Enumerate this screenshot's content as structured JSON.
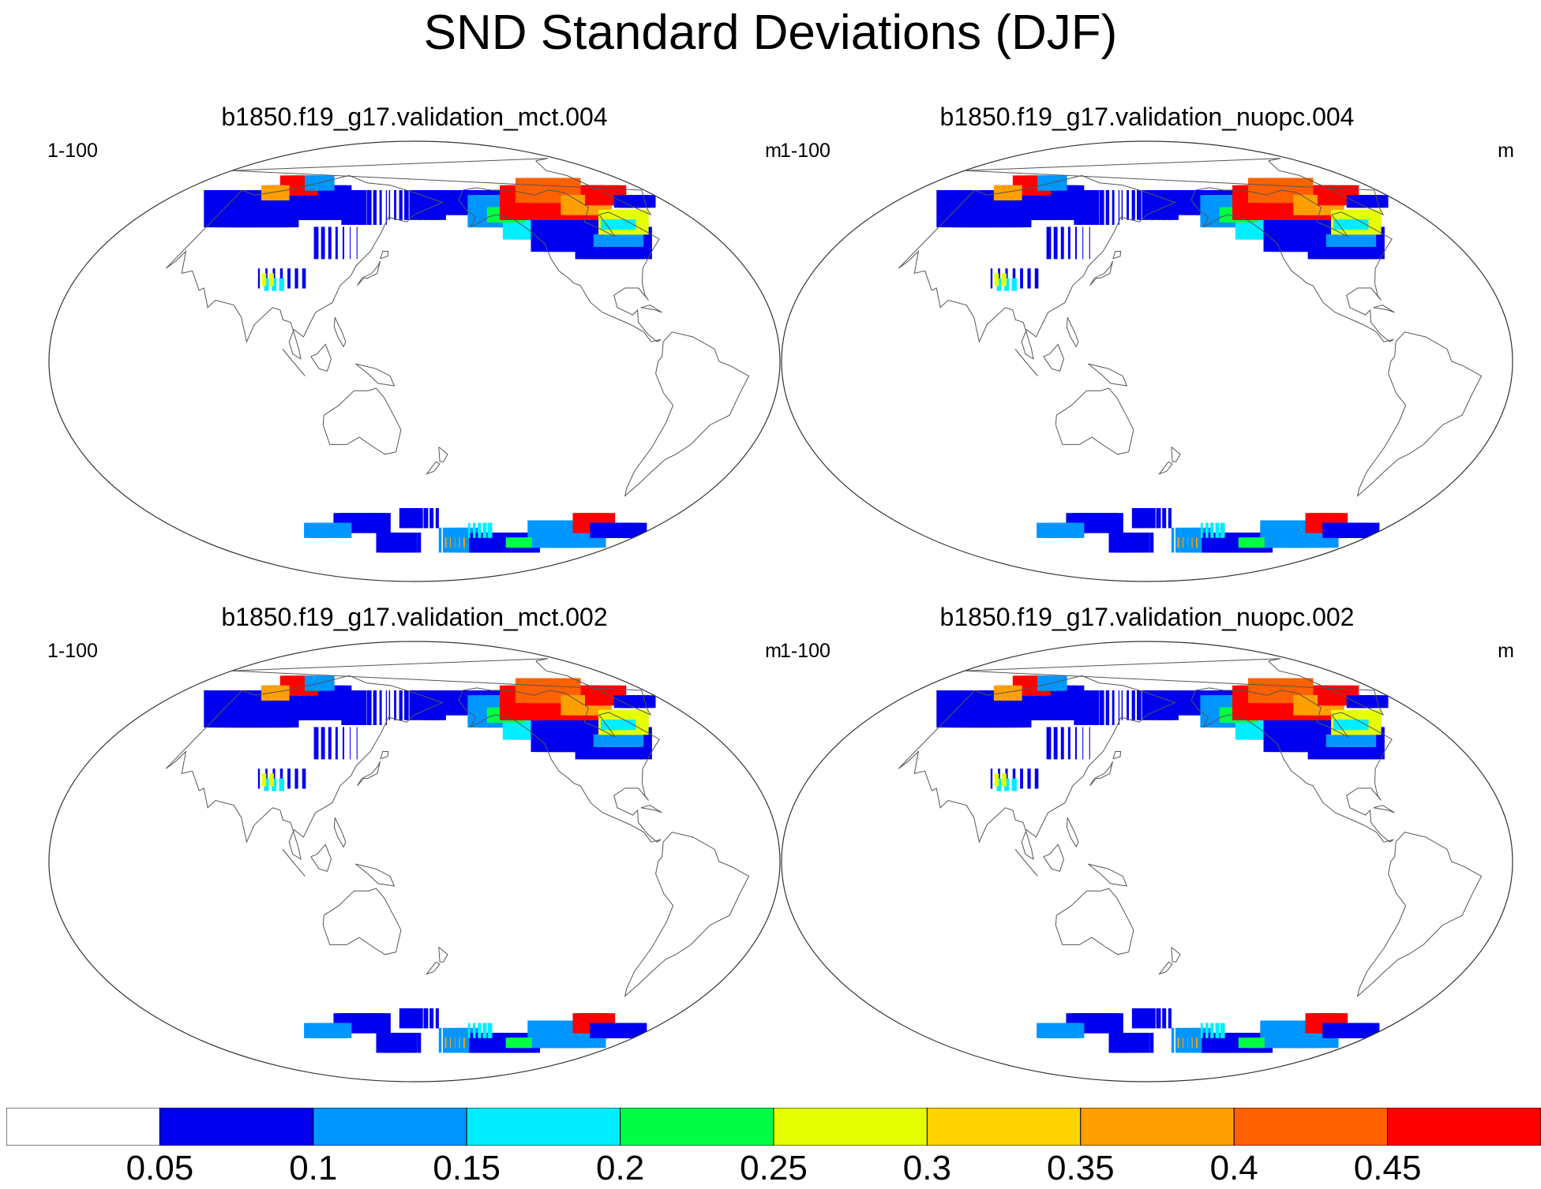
{
  "title": "SND Standard Deviations (DJF)",
  "panels": [
    {
      "title": "b1850.f19_g17.validation_mct.004",
      "left_label": "1-100",
      "right_label": "m"
    },
    {
      "title": "b1850.f19_g17.validation_nuopc.004",
      "left_label": "1-100",
      "right_label": "m"
    },
    {
      "title": "b1850.f19_g17.validation_mct.002",
      "left_label": "1-100",
      "right_label": "m"
    },
    {
      "title": "b1850.f19_g17.validation_nuopc.002",
      "left_label": "1-100",
      "right_label": "m"
    }
  ],
  "colorbar": {
    "levels": [
      "0.05",
      "0.1",
      "0.15",
      "0.2",
      "0.25",
      "0.3",
      "0.35",
      "0.4",
      "0.45"
    ],
    "colors": [
      "#ffffff",
      "#0000ee",
      "#0096ff",
      "#00eeff",
      "#00ff44",
      "#e5ff00",
      "#ffd200",
      "#ff9f00",
      "#ff6000",
      "#ff0000"
    ]
  }
}
